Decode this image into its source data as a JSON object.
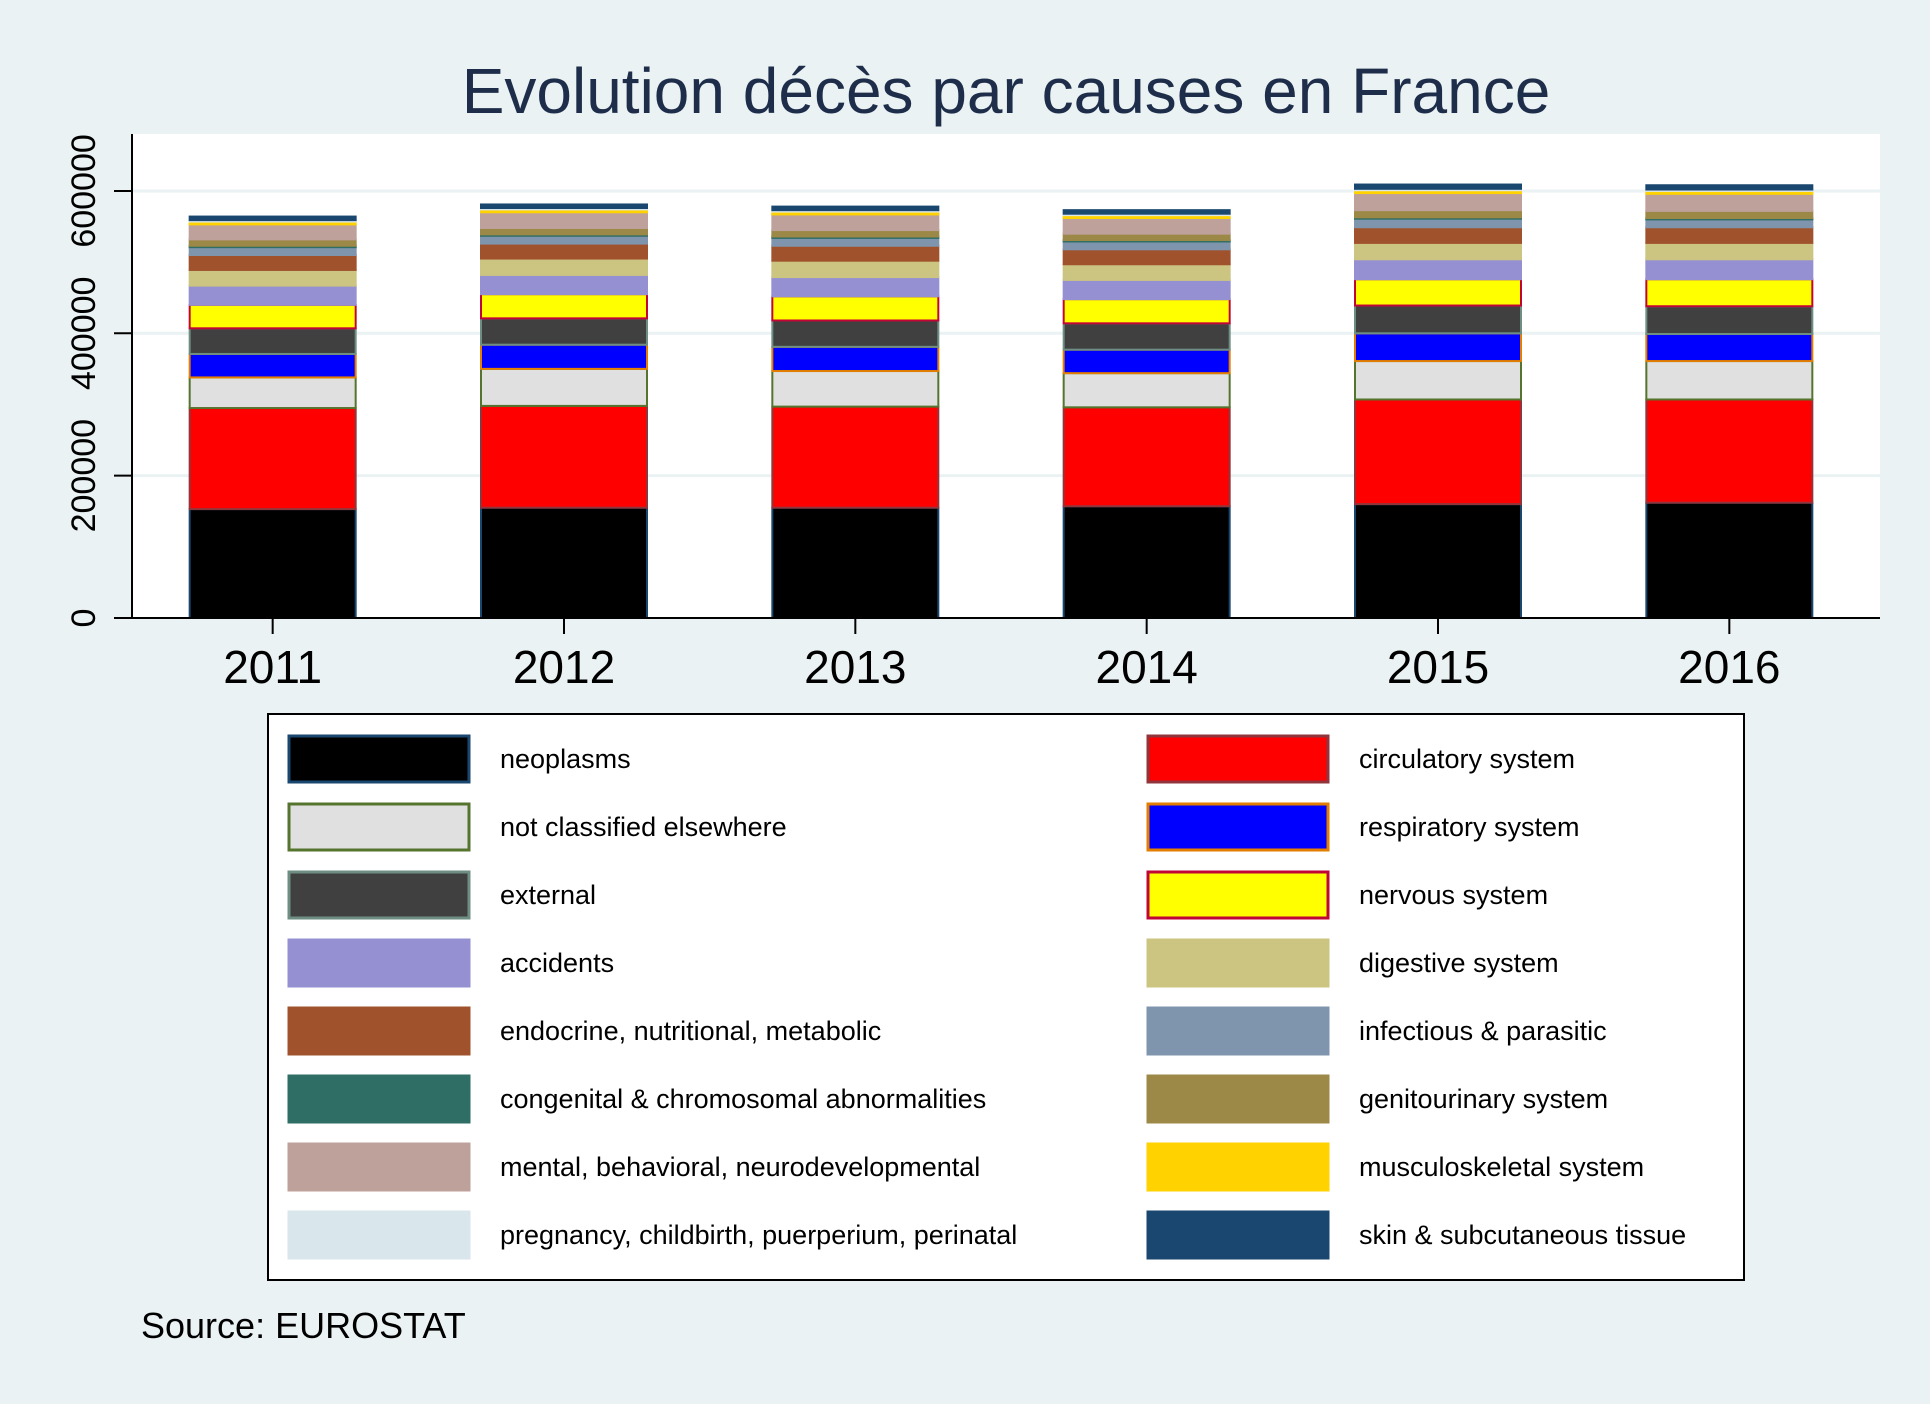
{
  "chart_data": {
    "type": "bar",
    "stacked": true,
    "title": "Evolution décès par causes en France",
    "xlabel": "",
    "ylabel": "",
    "ylim": [
      0,
      680000
    ],
    "yticks": [
      0,
      200000,
      400000,
      600000
    ],
    "ytick_labels": [
      "0",
      "200000",
      "400000",
      "600000"
    ],
    "grid": true,
    "legend_position": "bottom",
    "source": "Source: EUROSTAT",
    "categories": [
      "2011",
      "2012",
      "2013",
      "2014",
      "2015",
      "2016"
    ],
    "series": [
      {
        "name": "neoplasms",
        "color": "#000000",
        "border": "#1a476f",
        "values": [
          153000,
          155000,
          155000,
          157000,
          160000,
          162000
        ]
      },
      {
        "name": "circulatory system",
        "color": "#ff0000",
        "border": "#90353b",
        "values": [
          142000,
          143000,
          142000,
          139000,
          147000,
          145000
        ]
      },
      {
        "name": "not classified elsewhere",
        "color": "#e0e0e0",
        "border": "#55752f",
        "values": [
          43000,
          52000,
          50000,
          48000,
          54000,
          54000
        ]
      },
      {
        "name": "respiratory system",
        "color": "#0000ff",
        "border": "#e37e00",
        "values": [
          33000,
          34000,
          34000,
          33000,
          39000,
          38000
        ]
      },
      {
        "name": "external",
        "color": "#404040",
        "border": "#6e8e84",
        "values": [
          36000,
          37000,
          37000,
          37000,
          39000,
          39000
        ]
      },
      {
        "name": "nervous system",
        "color": "#ffff00",
        "border": "#c10534",
        "values": [
          33000,
          34000,
          34000,
          34000,
          37000,
          38000
        ]
      },
      {
        "name": "accidents",
        "color": "#9590d2",
        "border": "#9590d2",
        "values": [
          27000,
          27000,
          27000,
          27000,
          28000,
          28000
        ]
      },
      {
        "name": "digestive system",
        "color": "#ccc481",
        "border": "#ccc481",
        "values": [
          22000,
          23000,
          23000,
          22000,
          23000,
          23000
        ]
      },
      {
        "name": "endocrine, nutritional, metabolic",
        "color": "#a0522d",
        "border": "#a0522d",
        "values": [
          21000,
          21000,
          21000,
          21000,
          22000,
          22000
        ]
      },
      {
        "name": "infectious & parasitic",
        "color": "#7f95ad",
        "border": "#7f95ad",
        "values": [
          11000,
          11000,
          11000,
          11000,
          12000,
          11000
        ]
      },
      {
        "name": "congenital & chromosomal abnormalities",
        "color": "#2e6e65",
        "border": "#2e6e65",
        "values": [
          2000,
          2000,
          2000,
          2000,
          2000,
          2000
        ]
      },
      {
        "name": "genitourinary system",
        "color": "#9c8847",
        "border": "#9c8847",
        "values": [
          9000,
          9000,
          9000,
          9000,
          10000,
          10000
        ]
      },
      {
        "name": "mental, behavioral, neurodevelopmental",
        "color": "#bfa19c",
        "border": "#bfa19c",
        "values": [
          21000,
          22000,
          22000,
          22000,
          24000,
          24000
        ]
      },
      {
        "name": "musculoskeletal system",
        "color": "#ffd200",
        "border": "#ffd200",
        "values": [
          4000,
          4000,
          4000,
          4000,
          4000,
          4000
        ]
      },
      {
        "name": "pregnancy, childbirth, puerperium, perinatal",
        "color": "#d9e6eb",
        "border": "#d9e6eb",
        "values": [
          2000,
          2000,
          2000,
          2000,
          2000,
          2000
        ]
      },
      {
        "name": "skin & subcutaneous tissue",
        "color": "#1a476f",
        "border": "#1a476f",
        "values": [
          5000,
          5000,
          5000,
          5000,
          6000,
          6000
        ]
      }
    ]
  }
}
